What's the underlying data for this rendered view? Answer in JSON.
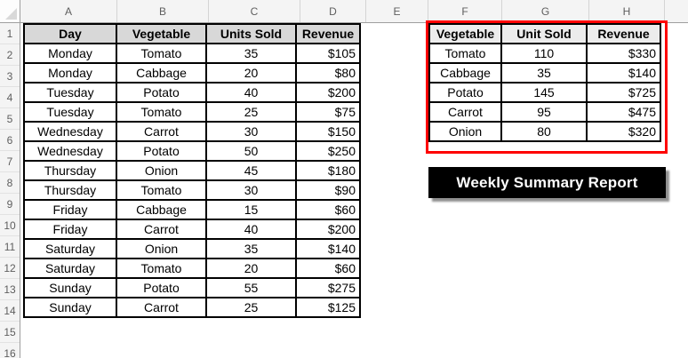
{
  "grid": {
    "column_letters": [
      "A",
      "B",
      "C",
      "D",
      "E",
      "F",
      "G",
      "H"
    ],
    "row_numbers": [
      "1",
      "2",
      "3",
      "4",
      "5",
      "6",
      "7",
      "8",
      "9",
      "10",
      "11",
      "12",
      "13",
      "14",
      "15",
      "16"
    ]
  },
  "left_table": {
    "headers": [
      "Day",
      "Vegetable",
      "Units Sold",
      "Revenue"
    ],
    "rows": [
      [
        "Monday",
        "Tomato",
        "35",
        "$105"
      ],
      [
        "Monday",
        "Cabbage",
        "20",
        "$80"
      ],
      [
        "Tuesday",
        "Potato",
        "40",
        "$200"
      ],
      [
        "Tuesday",
        "Tomato",
        "25",
        "$75"
      ],
      [
        "Wednesday",
        "Carrot",
        "30",
        "$150"
      ],
      [
        "Wednesday",
        "Potato",
        "50",
        "$250"
      ],
      [
        "Thursday",
        "Onion",
        "45",
        "$180"
      ],
      [
        "Thursday",
        "Tomato",
        "30",
        "$90"
      ],
      [
        "Friday",
        "Cabbage",
        "15",
        "$60"
      ],
      [
        "Friday",
        "Carrot",
        "40",
        "$200"
      ],
      [
        "Saturday",
        "Onion",
        "35",
        "$140"
      ],
      [
        "Saturday",
        "Tomato",
        "20",
        "$60"
      ],
      [
        "Sunday",
        "Potato",
        "55",
        "$275"
      ],
      [
        "Sunday",
        "Carrot",
        "25",
        "$125"
      ]
    ]
  },
  "summary_table": {
    "headers": [
      "Vegetable",
      "Unit Sold",
      "Revenue"
    ],
    "rows": [
      [
        "Tomato",
        "110",
        "$330"
      ],
      [
        "Cabbage",
        "35",
        "$140"
      ],
      [
        "Potato",
        "145",
        "$725"
      ],
      [
        "Carrot",
        "95",
        "$475"
      ],
      [
        "Onion",
        "80",
        "$320"
      ]
    ]
  },
  "banner": {
    "label": "Weekly Summary Report"
  },
  "colors": {
    "highlight_border": "#FE0000",
    "banner_bg": "#000000",
    "banner_text": "#FFFFFF",
    "left_header_fill": "#D8D8D8",
    "summary_header_fill": "#ECECEC",
    "grid_header_bg": "#F4F4F4",
    "grid_header_text": "#5E5E5E",
    "cell_border": "#000000"
  }
}
